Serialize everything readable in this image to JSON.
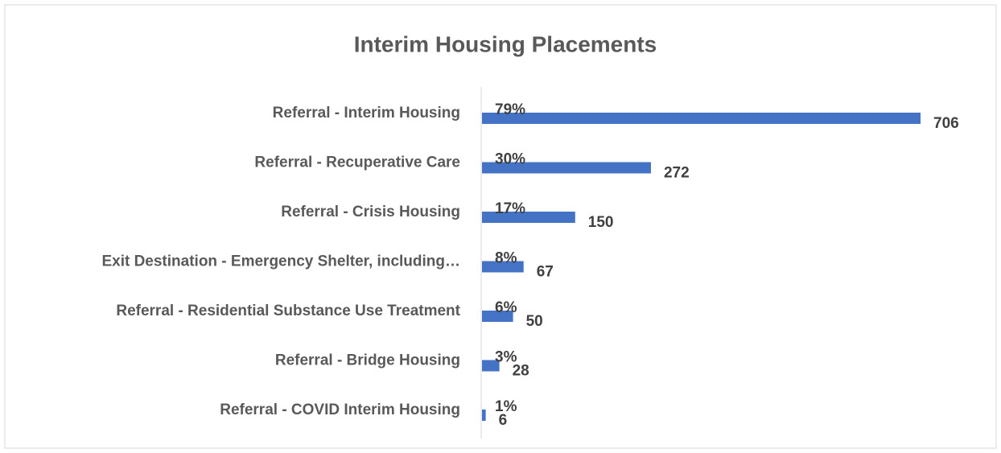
{
  "chart_data": {
    "type": "bar",
    "orientation": "horizontal",
    "title": "Interim Housing Placements",
    "categories": [
      "Referral - Interim Housing",
      "Referral - Recuperative Care",
      "Referral - Crisis Housing",
      "Exit Destination -  Emergency Shelter, including…",
      "Referral - Residential Substance Use Treatment",
      "Referral - Bridge Housing",
      "Referral - COVID Interim Housing"
    ],
    "values": [
      706,
      272,
      150,
      67,
      50,
      28,
      6
    ],
    "percent_labels": [
      "79%",
      "30%",
      "17%",
      "8%",
      "6%",
      "3%",
      "1%"
    ],
    "color": "#4472c4"
  }
}
